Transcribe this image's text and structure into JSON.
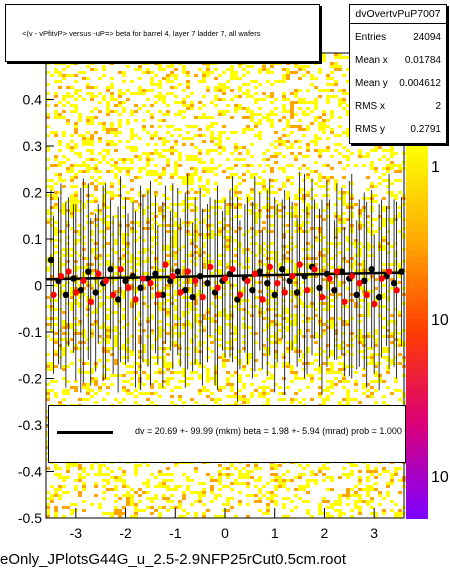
{
  "chart_data": {
    "type": "scatter",
    "title": "<(v - vPfitvP> versus -uP=> beta for barrel 4, layer 7 ladder 7, all wafers",
    "xlim": [
      -3.6,
      3.6
    ],
    "ylim": [
      -0.5,
      0.5
    ],
    "x_ticks": [
      -3,
      -2,
      -1,
      0,
      1,
      2,
      3
    ],
    "x_tick_labels": [
      "-3",
      "-2",
      "-1",
      "0",
      "1",
      "2",
      "3"
    ],
    "y_ticks": [
      -0.5,
      -0.4,
      -0.3,
      -0.2,
      -0.1,
      0,
      0.1,
      0.2,
      0.3,
      0.4
    ],
    "y_tick_labels": [
      "-0.5",
      "-0.4",
      "-0.3",
      "-0.2",
      "-0.1",
      "0",
      "0.1",
      "0.2",
      "0.3",
      "0.4"
    ],
    "colorbar_labels": [
      "1",
      "10",
      "10"
    ],
    "stats": {
      "name": "dvOvertvPuP7007",
      "rows": [
        {
          "key": "Entries",
          "value": "24094"
        },
        {
          "key": "Mean x",
          "value": "0.01784"
        },
        {
          "key": "Mean y",
          "value": "0.004612"
        },
        {
          "key": "RMS x",
          "value": "2"
        },
        {
          "key": "RMS y",
          "value": "0.2791"
        }
      ]
    },
    "fit": {
      "text": "dv =    20.69 +- 99.99 (mkm) beta =     1.98 +-  5.94 (mrad) prob = 1.000",
      "intercept_mkm": 20.69,
      "slope_mrad": 1.98
    },
    "series": [
      {
        "name": "black",
        "color": "#000000",
        "x": [
          -3.5,
          -3.35,
          -3.2,
          -3.05,
          -2.9,
          -2.75,
          -2.6,
          -2.45,
          -2.3,
          -2.15,
          -2.0,
          -1.85,
          -1.7,
          -1.55,
          -1.4,
          -1.25,
          -1.1,
          -0.95,
          -0.8,
          -0.65,
          -0.5,
          -0.35,
          -0.2,
          -0.05,
          0.1,
          0.25,
          0.4,
          0.55,
          0.7,
          0.85,
          1.0,
          1.15,
          1.3,
          1.45,
          1.6,
          1.75,
          1.9,
          2.05,
          2.2,
          2.35,
          2.5,
          2.65,
          2.8,
          2.95,
          3.1,
          3.25,
          3.4,
          3.55
        ],
        "y": [
          0.055,
          0.01,
          -0.02,
          0.015,
          -0.01,
          0.03,
          -0.015,
          0.005,
          0.035,
          -0.03,
          0.01,
          0.02,
          -0.005,
          0.015,
          0.025,
          -0.02,
          0.01,
          0.03,
          -0.01,
          -0.025,
          0.02,
          0.005,
          -0.015,
          0.01,
          0.025,
          -0.03,
          0.015,
          -0.01,
          0.03,
          0.005,
          -0.02,
          0.035,
          0.01,
          -0.015,
          0.02,
          0.04,
          -0.005,
          0.025,
          -0.01,
          0.03,
          0.015,
          -0.02,
          0.01,
          0.035,
          -0.025,
          0.02,
          0.005,
          0.03
        ],
        "err": [
          0.15,
          0.18,
          0.2,
          0.16,
          0.22,
          0.19,
          0.17,
          0.21,
          0.15,
          0.2,
          0.18,
          0.16,
          0.22,
          0.19,
          0.17,
          0.2,
          0.15,
          0.18,
          0.21,
          0.16,
          0.19,
          0.17,
          0.2,
          0.15,
          0.18,
          0.22,
          0.16,
          0.19,
          0.17,
          0.2,
          0.21,
          0.15,
          0.18,
          0.16,
          0.22,
          0.19,
          0.17,
          0.2,
          0.15,
          0.18,
          0.21,
          0.16,
          0.19,
          0.17,
          0.2,
          0.15,
          0.18,
          0.16
        ]
      },
      {
        "name": "red",
        "color": "#ff0000",
        "x": [
          -3.45,
          -3.3,
          -3.15,
          -3.0,
          -2.85,
          -2.7,
          -2.55,
          -2.4,
          -2.25,
          -2.1,
          -1.95,
          -1.8,
          -1.65,
          -1.5,
          -1.35,
          -1.2,
          -1.05,
          -0.9,
          -0.75,
          -0.6,
          -0.45,
          -0.3,
          -0.15,
          0.0,
          0.15,
          0.3,
          0.45,
          0.6,
          0.75,
          0.9,
          1.05,
          1.2,
          1.35,
          1.5,
          1.65,
          1.8,
          1.95,
          2.1,
          2.25,
          2.4,
          2.55,
          2.7,
          2.85,
          3.0,
          3.15,
          3.3,
          3.45
        ],
        "y": [
          -0.02,
          0.02,
          0.03,
          -0.015,
          0.01,
          -0.035,
          0.025,
          0.01,
          -0.02,
          0.035,
          -0.005,
          -0.03,
          0.015,
          0.005,
          -0.02,
          0.045,
          0.02,
          -0.015,
          0.03,
          0.01,
          -0.025,
          0.04,
          -0.005,
          0.015,
          0.035,
          -0.02,
          0.01,
          0.025,
          -0.03,
          0.04,
          0.005,
          -0.015,
          0.02,
          0.045,
          -0.01,
          0.035,
          -0.025,
          0.015,
          0.03,
          -0.035,
          0.02,
          0.005,
          -0.02,
          -0.04,
          0.015,
          0.03,
          -0.01
        ],
        "err": [
          0.17,
          0.2,
          0.16,
          0.19,
          0.22,
          0.18,
          0.15,
          0.21,
          0.17,
          0.2,
          0.16,
          0.19,
          0.18,
          0.22,
          0.15,
          0.17,
          0.2,
          0.16,
          0.21,
          0.18,
          0.19,
          0.15,
          0.22,
          0.17,
          0.2,
          0.16,
          0.18,
          0.21,
          0.15,
          0.19,
          0.17,
          0.22,
          0.16,
          0.2,
          0.18,
          0.15,
          0.21,
          0.17,
          0.19,
          0.16,
          0.22,
          0.18,
          0.2,
          0.15,
          0.17,
          0.21,
          0.19
        ]
      }
    ]
  },
  "footer": {
    "file_label": "eOnly_JPlotsG44G_u_2.5-2.9NFP25rCut0.5cm.root"
  },
  "colors": {
    "band_yellow": "#ffff00",
    "band_orange": "#ffa500",
    "colorbar_top": "#ffff00",
    "colorbar_bottom": "#8000ff",
    "marker_black": "#000000",
    "marker_red": "#ff0000"
  }
}
